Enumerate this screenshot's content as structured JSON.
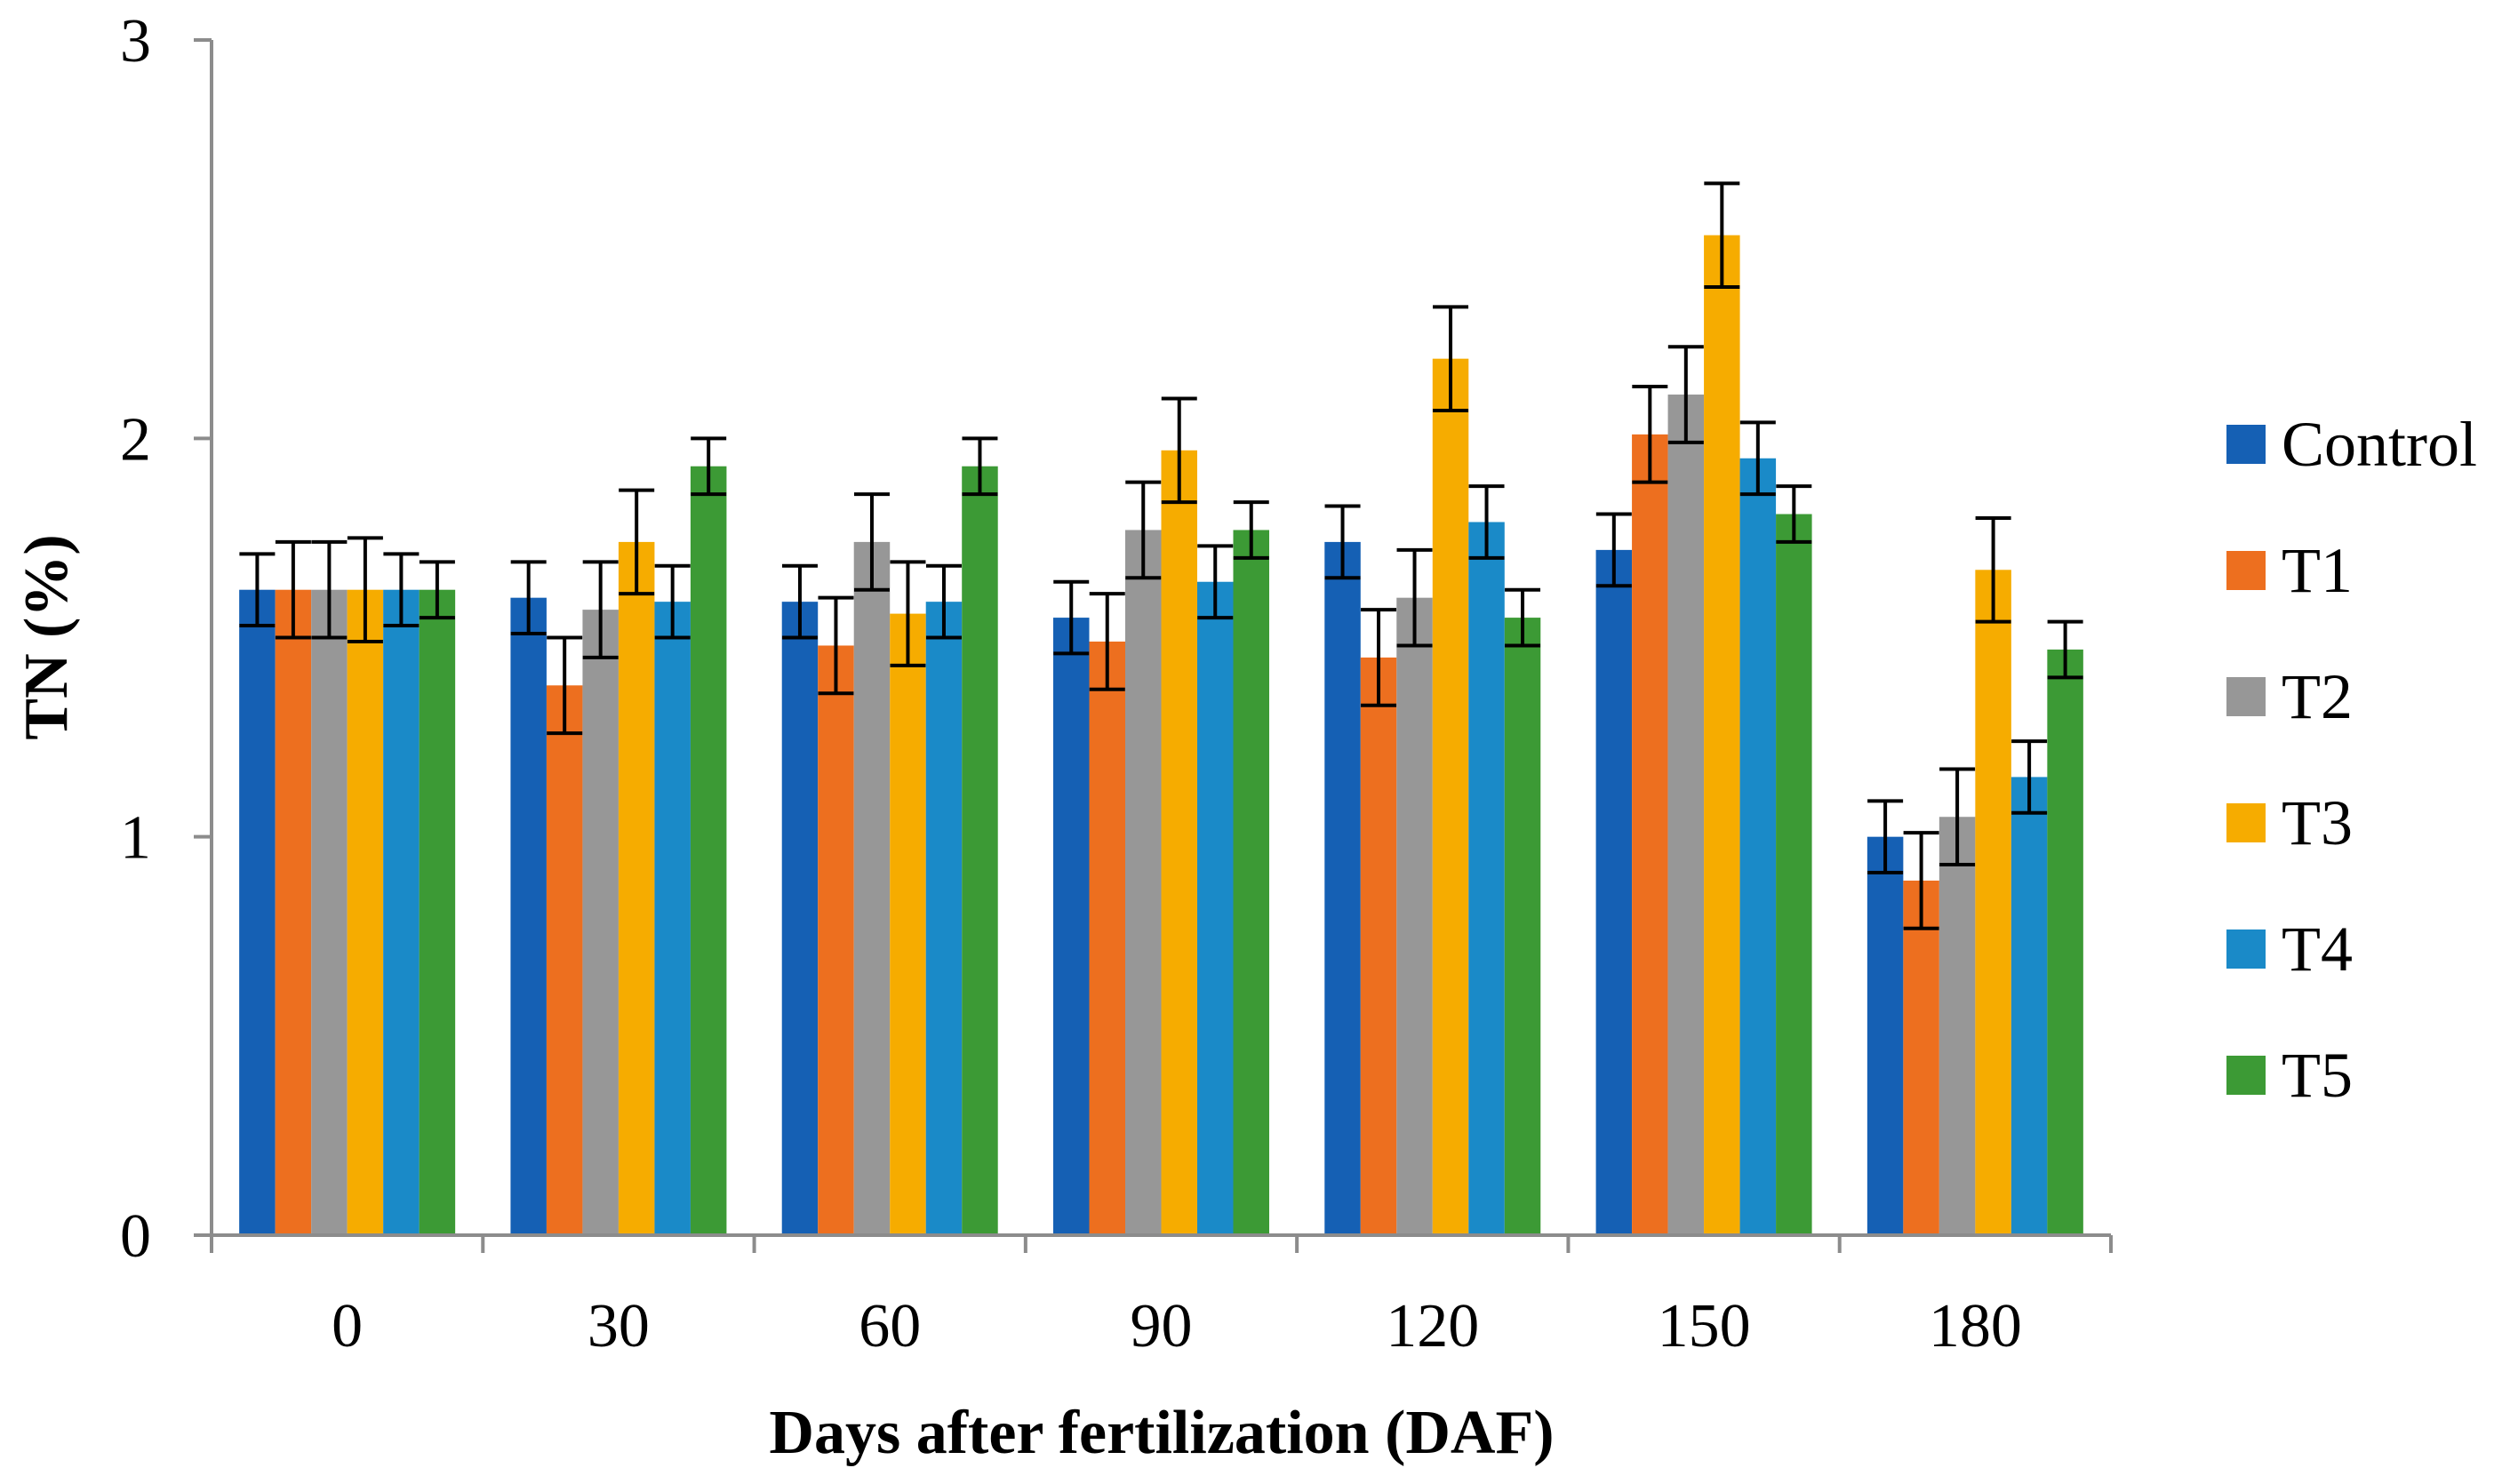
{
  "chart_data": {
    "type": "bar",
    "title": "",
    "xlabel": "Days after fertilization (DAF)",
    "ylabel": "TN (%)",
    "ylim": [
      0,
      3
    ],
    "yticks": [
      0,
      1,
      2,
      3
    ],
    "ytick_labels": [
      "0",
      "1",
      "2",
      "3"
    ],
    "categories": [
      "0",
      "30",
      "60",
      "90",
      "120",
      "150",
      "180"
    ],
    "grid": false,
    "legend_position": "right",
    "series": [
      {
        "name": "Control",
        "color": "#1560b4",
        "values": [
          1.62,
          1.6,
          1.59,
          1.55,
          1.74,
          1.72,
          1.0
        ],
        "errors": [
          0.09,
          0.09,
          0.09,
          0.09,
          0.09,
          0.09,
          0.09
        ]
      },
      {
        "name": "T1",
        "color": "#ed6f1f",
        "values": [
          1.62,
          1.38,
          1.48,
          1.49,
          1.45,
          2.01,
          0.89
        ],
        "errors": [
          0.12,
          0.12,
          0.12,
          0.12,
          0.12,
          0.12,
          0.12
        ]
      },
      {
        "name": "T2",
        "color": "#979797",
        "values": [
          1.62,
          1.57,
          1.74,
          1.77,
          1.6,
          2.11,
          1.05
        ],
        "errors": [
          0.12,
          0.12,
          0.12,
          0.12,
          0.12,
          0.12,
          0.12
        ]
      },
      {
        "name": "T3",
        "color": "#f6ac00",
        "values": [
          1.62,
          1.74,
          1.56,
          1.97,
          2.2,
          2.51,
          1.67
        ],
        "errors": [
          0.13,
          0.13,
          0.13,
          0.13,
          0.13,
          0.13,
          0.13
        ]
      },
      {
        "name": "T4",
        "color": "#1a8ac8",
        "values": [
          1.62,
          1.59,
          1.59,
          1.64,
          1.79,
          1.95,
          1.15
        ],
        "errors": [
          0.09,
          0.09,
          0.09,
          0.09,
          0.09,
          0.09,
          0.09
        ]
      },
      {
        "name": "T5",
        "color": "#3c9a35",
        "values": [
          1.62,
          1.93,
          1.93,
          1.77,
          1.55,
          1.81,
          1.47
        ],
        "errors": [
          0.07,
          0.07,
          0.07,
          0.07,
          0.07,
          0.07,
          0.07
        ]
      }
    ]
  }
}
